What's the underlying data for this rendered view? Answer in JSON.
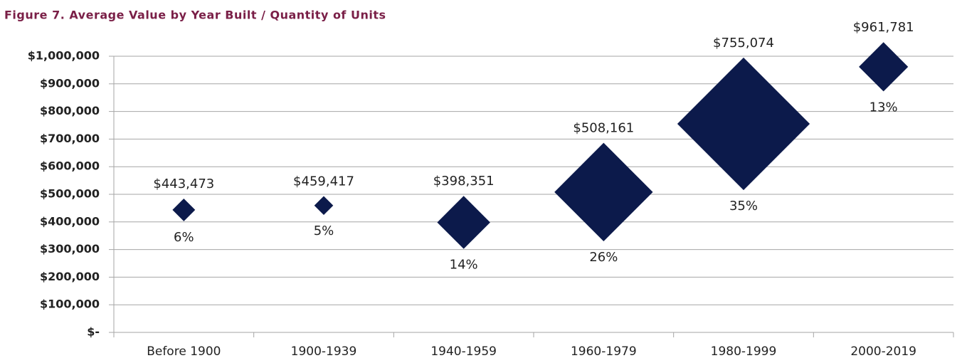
{
  "chart_data": {
    "type": "diamond-bubble",
    "title": "Figure 7.  Average Value by Year Built / Quantity of Units",
    "categories": [
      "Before 1900",
      "1900-1939",
      "1940-1959",
      "1960-1979",
      "1980-1999",
      "2000-2019"
    ],
    "values": [
      443473,
      459417,
      398351,
      508161,
      755074,
      961781
    ],
    "value_labels": [
      "$443,473",
      "$459,417",
      "$398,351",
      "$508,161",
      "$755,074",
      "$961,781"
    ],
    "sizes": [
      6,
      5,
      14,
      26,
      35,
      13
    ],
    "size_labels": [
      "6%",
      "5%",
      "14%",
      "26%",
      "35%",
      "13%"
    ],
    "color": "#0c1a4b",
    "ylim": [
      0,
      1000000
    ],
    "yticks": [
      {
        "value": 0,
        "label": "$-"
      },
      {
        "value": 100000,
        "label": "$100,000"
      },
      {
        "value": 200000,
        "label": "$200,000"
      },
      {
        "value": 300000,
        "label": "$300,000"
      },
      {
        "value": 400000,
        "label": "$400,000"
      },
      {
        "value": 500000,
        "label": "$500,000"
      },
      {
        "value": 600000,
        "label": "$600,000"
      },
      {
        "value": 700000,
        "label": "$700,000"
      },
      {
        "value": 800000,
        "label": "$800,000"
      },
      {
        "value": 900000,
        "label": "$900,000"
      },
      {
        "value": 1000000,
        "label": "$1,000,000"
      }
    ],
    "grid": true
  }
}
